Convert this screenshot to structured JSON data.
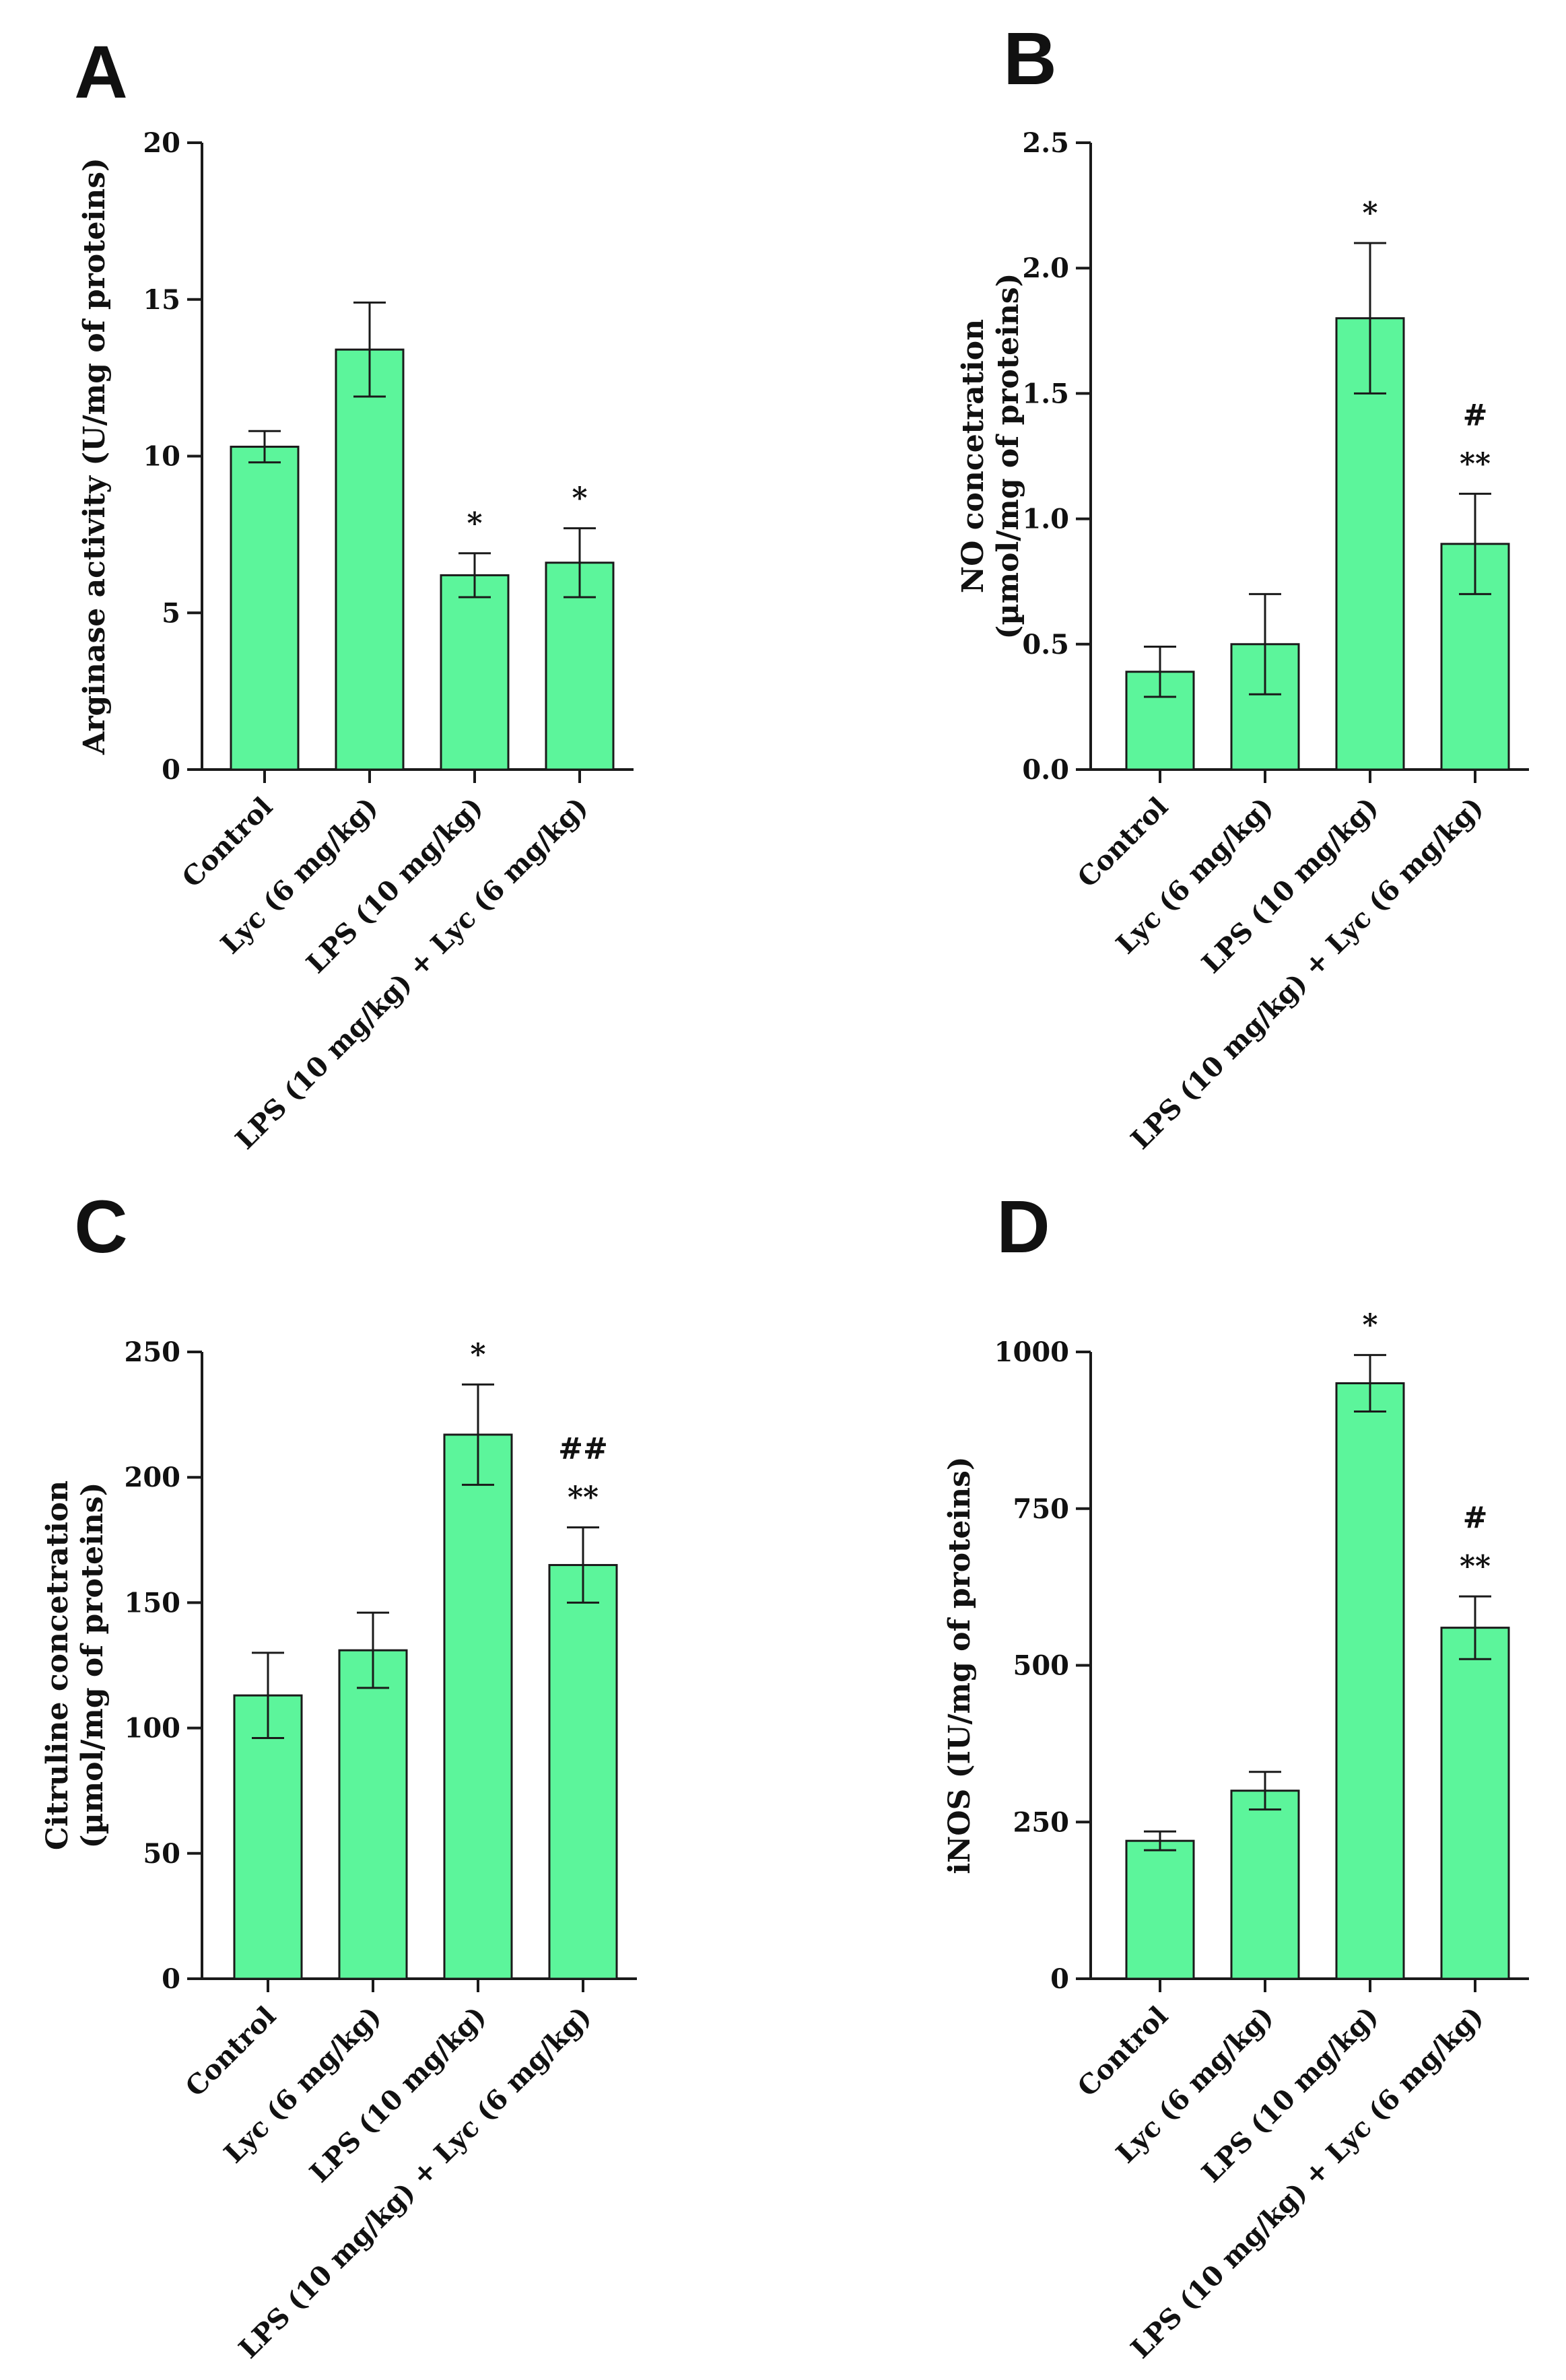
{
  "colors": {
    "bar_fill": "#5cf59b",
    "bar_stroke": "#1a1a1a",
    "axis": "#1a1a1a"
  },
  "chart_data": [
    {
      "type": "bar",
      "panel": "A",
      "categories": [
        "Control",
        "Lyc (6 mg/kg)",
        "LPS (10 mg/kg)",
        "LPS (10 mg/kg) + Lyc (6 mg/kg)"
      ],
      "values": [
        10.3,
        13.4,
        6.2,
        6.6
      ],
      "errors": [
        0.5,
        1.5,
        0.7,
        1.1
      ],
      "annotations": [
        [],
        [],
        [
          "*"
        ],
        [
          "*"
        ]
      ],
      "ylabel": [
        "Arginase activity (U/mg of proteins)"
      ],
      "ylim": [
        0,
        20
      ],
      "yticks": [
        0,
        5,
        10,
        15,
        20
      ],
      "ytick_labels": [
        "0",
        "5",
        "10",
        "15",
        "20"
      ],
      "grid": false
    },
    {
      "type": "bar",
      "panel": "B",
      "categories": [
        "Control",
        "Lyc (6 mg/kg)",
        "LPS (10 mg/kg)",
        "LPS (10 mg/kg) + Lyc (6 mg/kg)"
      ],
      "values": [
        0.39,
        0.5,
        1.8,
        0.9
      ],
      "errors": [
        0.1,
        0.2,
        0.3,
        0.2
      ],
      "annotations": [
        [],
        [],
        [
          "*"
        ],
        [
          "**",
          "#"
        ]
      ],
      "ylabel": [
        "NO concetration",
        "(µmol/mg of proteins)"
      ],
      "ylim": [
        0,
        2.5
      ],
      "yticks": [
        0,
        0.5,
        1,
        1.5,
        2,
        2.5
      ],
      "ytick_labels": [
        "0.0",
        "0.5",
        "1.0",
        "1.5",
        "2.0",
        "2.5"
      ],
      "grid": false
    },
    {
      "type": "bar",
      "panel": "C",
      "categories": [
        "Control",
        "Lyc (6 mg/kg)",
        "LPS (10 mg/kg)",
        "LPS (10 mg/kg) + Lyc (6 mg/kg)"
      ],
      "values": [
        113,
        131,
        217,
        165
      ],
      "errors": [
        17,
        15,
        20,
        15
      ],
      "annotations": [
        [],
        [],
        [
          "*"
        ],
        [
          "**",
          "##"
        ]
      ],
      "ylabel": [
        "Citruline concetration",
        "(µmol/mg of proteins)"
      ],
      "ylim": [
        0,
        250
      ],
      "yticks": [
        0,
        50,
        100,
        150,
        200,
        250
      ],
      "ytick_labels": [
        "0",
        "50",
        "100",
        "150",
        "200",
        "250"
      ],
      "grid": false
    },
    {
      "type": "bar",
      "panel": "D",
      "categories": [
        "Control",
        "Lyc (6 mg/kg)",
        "LPS (10 mg/kg)",
        "LPS (10 mg/kg) + Lyc (6 mg/kg)"
      ],
      "values": [
        220,
        300,
        950,
        560
      ],
      "errors": [
        15,
        30,
        45,
        50
      ],
      "annotations": [
        [],
        [],
        [
          "*"
        ],
        [
          "**",
          "#"
        ]
      ],
      "ylabel": [
        "iNOS  (IU/mg of proteins)"
      ],
      "ylim": [
        0,
        1000
      ],
      "yticks": [
        0,
        250,
        500,
        750,
        1000
      ],
      "ytick_labels": [
        "0",
        "250",
        "500",
        "750",
        "1000"
      ],
      "grid": false
    }
  ]
}
